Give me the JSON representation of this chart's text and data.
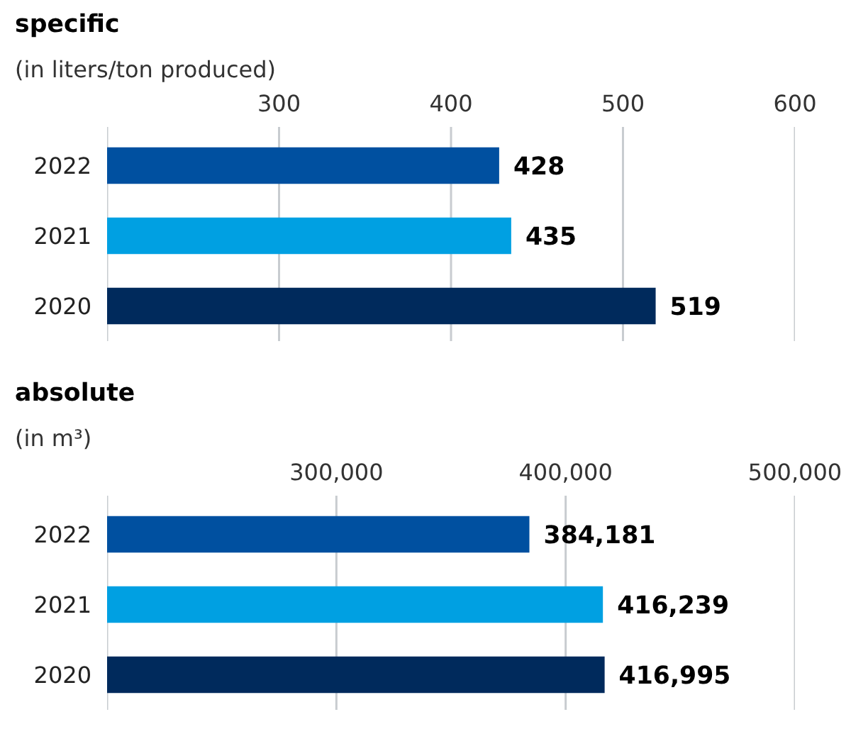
{
  "chart_data": [
    {
      "type": "bar",
      "orientation": "horizontal",
      "title": "specific",
      "subtitle": "(in liters/ton produced)",
      "categories": [
        "2022",
        "2021",
        "2020"
      ],
      "values": [
        428,
        435,
        519
      ],
      "colors": [
        "#0050a0",
        "#00a0e2",
        "#002a5c"
      ],
      "value_labels": [
        "428",
        "435",
        "519"
      ],
      "xlim": [
        200,
        600
      ],
      "xticks": [
        {
          "value": 200,
          "label": null
        },
        300,
        400,
        500,
        600
      ],
      "grid": "x"
    },
    {
      "type": "bar",
      "orientation": "horizontal",
      "title": "absolute",
      "subtitle": "(in m³)",
      "categories": [
        "2022",
        "2021",
        "2020"
      ],
      "values": [
        384181,
        416239,
        416995
      ],
      "colors": [
        "#0050a0",
        "#00a0e2",
        "#002a5c"
      ],
      "value_labels": [
        "384,181",
        "416,239",
        "416,995"
      ],
      "xlim": [
        200000,
        500000
      ],
      "xticks": [
        {
          "value": 200000,
          "label": null
        },
        {
          "value": 300000,
          "label": "300,000"
        },
        {
          "value": 400000,
          "label": "400,000"
        },
        {
          "value": 500000,
          "label": "500,000"
        }
      ],
      "grid": "x"
    }
  ]
}
